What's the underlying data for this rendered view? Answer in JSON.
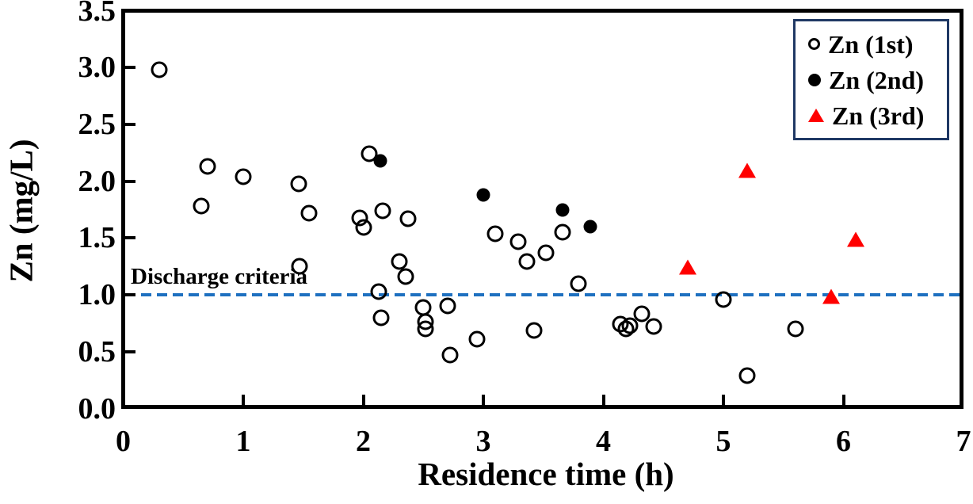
{
  "chart_data": {
    "type": "scatter",
    "title": "",
    "xlabel": "Residence time (h)",
    "ylabel": "Zn (mg/L)",
    "xlim": [
      0,
      7
    ],
    "ylim": [
      0,
      3.5
    ],
    "grid": false,
    "legend_position": "top-right",
    "x_ticks": [
      0,
      1,
      2,
      3,
      4,
      5,
      6,
      7
    ],
    "x_tick_labels": [
      "0",
      "1",
      "2",
      "3",
      "4",
      "5",
      "6",
      "7"
    ],
    "y_ticks": [
      0,
      0.5,
      1,
      1.5,
      2,
      2.5,
      3,
      3.5
    ],
    "y_tick_labels": [
      "0.0",
      "0.5",
      "1.0",
      "1.5",
      "2.0",
      "2.5",
      "3.0",
      "3.5"
    ],
    "reference_line": {
      "y": 1.0,
      "label": "Discharge criteria",
      "color": "#1E70C0",
      "style": "dashed"
    },
    "series": [
      {
        "name": "Zn (1st)",
        "marker": "open-circle",
        "color": "#000000",
        "points": [
          [
            0.3,
            2.98
          ],
          [
            0.65,
            1.78
          ],
          [
            0.7,
            2.13
          ],
          [
            1.0,
            2.04
          ],
          [
            1.46,
            1.98
          ],
          [
            1.47,
            1.25
          ],
          [
            1.55,
            1.72
          ],
          [
            1.97,
            1.68
          ],
          [
            2.0,
            1.59
          ],
          [
            2.05,
            2.24
          ],
          [
            2.13,
            1.03
          ],
          [
            2.15,
            0.8
          ],
          [
            2.16,
            1.74
          ],
          [
            2.3,
            1.29
          ],
          [
            2.35,
            1.16
          ],
          [
            2.37,
            1.67
          ],
          [
            2.5,
            0.89
          ],
          [
            2.52,
            0.76
          ],
          [
            2.52,
            0.7
          ],
          [
            2.7,
            0.9
          ],
          [
            2.72,
            0.47
          ],
          [
            2.95,
            0.61
          ],
          [
            3.1,
            1.54
          ],
          [
            3.29,
            1.47
          ],
          [
            3.36,
            1.29
          ],
          [
            3.42,
            0.69
          ],
          [
            3.52,
            1.37
          ],
          [
            3.66,
            1.55
          ],
          [
            3.79,
            1.1
          ],
          [
            4.14,
            0.74
          ],
          [
            4.19,
            0.7
          ],
          [
            4.22,
            0.73
          ],
          [
            4.32,
            0.83
          ],
          [
            4.42,
            0.72
          ],
          [
            5.0,
            0.96
          ],
          [
            5.2,
            0.29
          ],
          [
            5.6,
            0.7
          ]
        ]
      },
      {
        "name": "Zn (2nd)",
        "marker": "filled-circle",
        "color": "#000000",
        "points": [
          [
            2.14,
            2.18
          ],
          [
            3.0,
            1.88
          ],
          [
            3.66,
            1.75
          ],
          [
            3.89,
            1.6
          ]
        ]
      },
      {
        "name": "Zn (3rd)",
        "marker": "triangle",
        "color": "#FF0000",
        "points": [
          [
            4.7,
            1.24
          ],
          [
            5.2,
            2.09
          ],
          [
            5.9,
            0.98
          ],
          [
            6.1,
            1.48
          ]
        ]
      }
    ]
  },
  "colors": {
    "axis": "#000000",
    "reference_blue": "#1E70C0",
    "triangle_red": "#FF0000",
    "legend_border": "#1F3864",
    "background": "#FFFFFF"
  }
}
